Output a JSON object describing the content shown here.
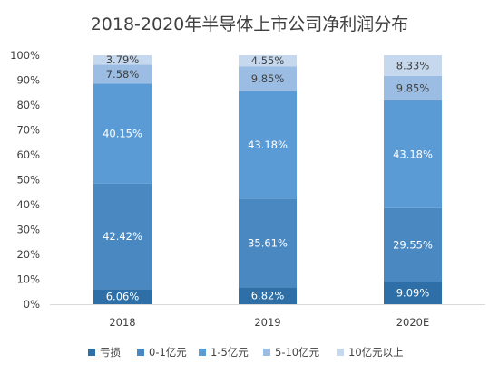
{
  "chart_data": {
    "type": "bar",
    "stacked": true,
    "title": "2018-2020年半导体上市公司净利润分布",
    "categories": [
      "2018",
      "2019",
      "2020E"
    ],
    "ylim": [
      0,
      100
    ],
    "yticks": [
      "0%",
      "10%",
      "20%",
      "30%",
      "40%",
      "50%",
      "60%",
      "70%",
      "80%",
      "90%",
      "100%"
    ],
    "grid": false,
    "legend_position": "bottom",
    "series": [
      {
        "name": "亏损",
        "values": [
          6.06,
          6.82,
          9.09
        ],
        "labels": [
          "6.06%",
          "6.82%",
          "9.09%"
        ],
        "color": "#2e6fa7",
        "label_color": "#ffffff"
      },
      {
        "name": "0-1亿元",
        "values": [
          42.42,
          35.61,
          29.55
        ],
        "labels": [
          "42.42%",
          "35.61%",
          "29.55%"
        ],
        "color": "#4a88c2",
        "label_color": "#ffffff"
      },
      {
        "name": "1-5亿元",
        "values": [
          40.15,
          43.18,
          43.18
        ],
        "labels": [
          "40.15%",
          "43.18%",
          "43.18%"
        ],
        "color": "#5b9bd5",
        "label_color": "#ffffff"
      },
      {
        "name": "5-10亿元",
        "values": [
          7.58,
          9.85,
          9.85
        ],
        "labels": [
          "7.58%",
          "9.85%",
          "9.85%"
        ],
        "color": "#9bbde3",
        "label_color": "#404040"
      },
      {
        "name": "10亿元以上",
        "values": [
          3.79,
          4.55,
          8.33
        ],
        "labels": [
          "3.79%",
          "4.55%",
          "8.33%"
        ],
        "color": "#c5d8ee",
        "label_color": "#404040"
      }
    ]
  }
}
